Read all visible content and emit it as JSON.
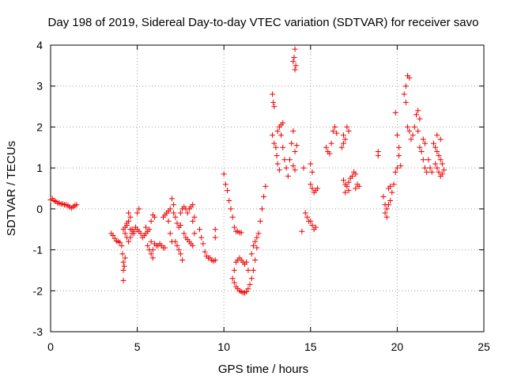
{
  "chart_data": {
    "type": "scatter",
    "title": "Day 198 of 2019, Sidereal Day-to-day VTEC variation (SDTVAR) for receiver savo",
    "xlabel": "GPS time / hours",
    "ylabel": "SDTVAR / TECUs",
    "xlim": [
      0,
      25
    ],
    "ylim": [
      -3,
      4
    ],
    "xticks": [
      "0",
      "5",
      "10",
      "15",
      "20",
      "25"
    ],
    "yticks": [
      "-3",
      "-2",
      "-1",
      "0",
      "1",
      "2",
      "3",
      "4"
    ],
    "grid": true,
    "marker": "+",
    "color": "#ee0000",
    "series": [
      {
        "name": "SDTVAR",
        "points": [
          [
            0.0,
            0.22
          ],
          [
            0.1,
            0.25
          ],
          [
            0.2,
            0.2
          ],
          [
            0.3,
            0.18
          ],
          [
            0.4,
            0.15
          ],
          [
            0.5,
            0.14
          ],
          [
            0.6,
            0.12
          ],
          [
            0.7,
            0.12
          ],
          [
            0.8,
            0.1
          ],
          [
            0.9,
            0.1
          ],
          [
            1.0,
            0.08
          ],
          [
            1.1,
            0.05
          ],
          [
            1.2,
            0.02
          ],
          [
            1.3,
            0.05
          ],
          [
            1.4,
            0.08
          ],
          [
            1.5,
            0.1
          ],
          [
            3.5,
            -0.6
          ],
          [
            3.6,
            -0.65
          ],
          [
            3.7,
            -0.72
          ],
          [
            3.8,
            -0.78
          ],
          [
            3.9,
            -0.8
          ],
          [
            4.0,
            -0.82
          ],
          [
            4.1,
            -0.9
          ],
          [
            4.15,
            -1.1
          ],
          [
            4.2,
            -1.3
          ],
          [
            4.2,
            -1.5
          ],
          [
            4.2,
            -1.75
          ],
          [
            4.25,
            -1.4
          ],
          [
            4.3,
            -1.2
          ],
          [
            4.2,
            -0.5
          ],
          [
            4.3,
            -0.45
          ],
          [
            4.4,
            -0.35
          ],
          [
            4.5,
            -0.3
          ],
          [
            4.6,
            -0.2
          ],
          [
            4.5,
            -0.1
          ],
          [
            4.4,
            -0.4
          ],
          [
            4.6,
            -0.5
          ],
          [
            4.7,
            -0.6
          ],
          [
            4.8,
            -0.55
          ],
          [
            4.9,
            -0.45
          ],
          [
            5.0,
            -0.5
          ],
          [
            5.1,
            -0.55
          ],
          [
            5.2,
            -0.6
          ],
          [
            5.0,
            -0.1
          ],
          [
            5.1,
            0.0
          ],
          [
            4.3,
            -0.6
          ],
          [
            4.4,
            -0.7
          ],
          [
            4.5,
            -0.8
          ],
          [
            4.6,
            -0.7
          ],
          [
            4.7,
            -0.5
          ],
          [
            4.8,
            -0.6
          ],
          [
            5.3,
            -0.7
          ],
          [
            5.4,
            -0.65
          ],
          [
            5.5,
            -0.6
          ],
          [
            5.6,
            -0.55
          ],
          [
            5.5,
            -0.45
          ],
          [
            5.7,
            -0.5
          ],
          [
            5.8,
            -0.3
          ],
          [
            5.9,
            -0.15
          ],
          [
            6.0,
            -0.2
          ],
          [
            5.6,
            -0.9
          ],
          [
            5.7,
            -1.0
          ],
          [
            5.8,
            -1.1
          ],
          [
            5.9,
            -1.2
          ],
          [
            5.8,
            -0.8
          ],
          [
            5.9,
            -1.0
          ],
          [
            6.0,
            -0.85
          ],
          [
            6.1,
            -0.9
          ],
          [
            6.2,
            -0.9
          ],
          [
            6.3,
            -0.85
          ],
          [
            6.4,
            -0.9
          ],
          [
            6.5,
            -0.95
          ],
          [
            6.6,
            -0.95
          ],
          [
            6.5,
            -0.2
          ],
          [
            6.6,
            -0.15
          ],
          [
            6.7,
            -0.1
          ],
          [
            6.8,
            -0.05
          ],
          [
            6.9,
            0.0
          ],
          [
            6.8,
            -0.3
          ],
          [
            6.9,
            -0.6
          ],
          [
            7.0,
            -0.8
          ],
          [
            7.0,
            0.25
          ],
          [
            7.1,
            0.1
          ],
          [
            7.1,
            -0.1
          ],
          [
            7.2,
            -0.2
          ],
          [
            7.3,
            -0.35
          ],
          [
            7.4,
            -0.45
          ],
          [
            7.5,
            -0.4
          ],
          [
            7.5,
            -0.1
          ],
          [
            7.6,
            0.0
          ],
          [
            7.7,
            0.05
          ],
          [
            7.8,
            0.0
          ],
          [
            7.9,
            -0.1
          ],
          [
            8.0,
            0.0
          ],
          [
            8.1,
            0.05
          ],
          [
            8.2,
            0.1
          ],
          [
            8.2,
            -0.3
          ],
          [
            8.3,
            -0.2
          ],
          [
            7.2,
            -0.8
          ],
          [
            7.3,
            -0.9
          ],
          [
            7.4,
            -1.0
          ],
          [
            7.5,
            -1.1
          ],
          [
            7.6,
            -1.25
          ],
          [
            7.7,
            -0.6
          ],
          [
            7.8,
            -0.7
          ],
          [
            7.9,
            -0.75
          ],
          [
            8.0,
            -0.8
          ],
          [
            8.1,
            -0.85
          ],
          [
            8.2,
            -0.9
          ],
          [
            8.3,
            -0.6
          ],
          [
            8.6,
            -0.5
          ],
          [
            8.7,
            -0.7
          ],
          [
            8.8,
            -0.85
          ],
          [
            8.9,
            -1.05
          ],
          [
            9.0,
            -1.15
          ],
          [
            9.1,
            -1.2
          ],
          [
            9.2,
            -1.2
          ],
          [
            9.3,
            -1.25
          ],
          [
            9.4,
            -1.28
          ],
          [
            9.5,
            -1.25
          ],
          [
            9.5,
            -0.5
          ],
          [
            9.5,
            -0.7
          ],
          [
            10.0,
            0.85
          ],
          [
            10.1,
            0.6
          ],
          [
            10.2,
            0.45
          ],
          [
            10.3,
            0.2
          ],
          [
            10.4,
            0.0
          ],
          [
            10.5,
            -0.2
          ],
          [
            10.6,
            -0.45
          ],
          [
            10.7,
            -0.55
          ],
          [
            10.8,
            -0.55
          ],
          [
            10.9,
            -0.58
          ],
          [
            11.0,
            -0.58
          ],
          [
            10.5,
            -1.7
          ],
          [
            10.6,
            -1.8
          ],
          [
            10.7,
            -1.9
          ],
          [
            10.8,
            -1.95
          ],
          [
            10.9,
            -2.0
          ],
          [
            11.0,
            -2.02
          ],
          [
            11.1,
            -2.05
          ],
          [
            11.2,
            -2.05
          ],
          [
            11.3,
            -2.02
          ],
          [
            11.4,
            -1.95
          ],
          [
            11.5,
            -1.85
          ],
          [
            11.6,
            -1.7
          ],
          [
            11.7,
            -1.5
          ],
          [
            11.8,
            -1.25
          ],
          [
            11.9,
            -0.95
          ],
          [
            12.0,
            -0.6
          ],
          [
            12.1,
            -0.3
          ],
          [
            12.2,
            0.0
          ],
          [
            12.3,
            0.3
          ],
          [
            12.4,
            0.55
          ],
          [
            10.6,
            -1.5
          ],
          [
            10.7,
            -1.3
          ],
          [
            10.8,
            -1.25
          ],
          [
            10.9,
            -1.2
          ],
          [
            11.0,
            -1.25
          ],
          [
            11.1,
            -1.3
          ],
          [
            11.2,
            -1.35
          ],
          [
            11.3,
            -1.3
          ],
          [
            11.4,
            -1.5
          ],
          [
            11.6,
            -1.1
          ],
          [
            11.7,
            -0.9
          ],
          [
            11.8,
            -0.8
          ],
          [
            11.9,
            -0.7
          ],
          [
            12.8,
            2.8
          ],
          [
            12.85,
            2.6
          ],
          [
            12.9,
            2.5
          ],
          [
            12.8,
            1.8
          ],
          [
            12.9,
            1.6
          ],
          [
            13.0,
            1.5
          ],
          [
            13.05,
            1.3
          ],
          [
            13.1,
            1.1
          ],
          [
            13.2,
            0.95
          ],
          [
            13.1,
            1.9
          ],
          [
            13.2,
            2.0
          ],
          [
            13.3,
            2.05
          ],
          [
            13.4,
            2.1
          ],
          [
            13.3,
            1.8
          ],
          [
            13.4,
            1.5
          ],
          [
            13.5,
            1.2
          ],
          [
            13.6,
            1.0
          ],
          [
            13.7,
            0.8
          ],
          [
            13.8,
            1.2
          ],
          [
            13.9,
            1.6
          ],
          [
            14.0,
            1.9
          ],
          [
            14.0,
            1.05
          ],
          [
            14.1,
            0.95
          ],
          [
            14.1,
            1.4
          ],
          [
            14.2,
            1.55
          ],
          [
            14.0,
            3.6
          ],
          [
            14.05,
            3.7
          ],
          [
            14.1,
            3.9
          ],
          [
            14.15,
            3.5
          ],
          [
            14.1,
            3.4
          ],
          [
            14.5,
            -0.55
          ],
          [
            14.6,
            1.0
          ],
          [
            14.7,
            -0.1
          ],
          [
            14.8,
            -0.2
          ],
          [
            14.9,
            -0.3
          ],
          [
            15.0,
            0.6
          ],
          [
            15.1,
            0.9
          ],
          [
            15.0,
            1.1
          ],
          [
            15.1,
            0.5
          ],
          [
            15.2,
            0.4
          ],
          [
            15.3,
            0.45
          ],
          [
            15.4,
            0.5
          ],
          [
            15.1,
            -0.4
          ],
          [
            15.2,
            -0.5
          ],
          [
            15.3,
            -0.45
          ],
          [
            15.0,
            -0.3
          ],
          [
            15.9,
            1.5
          ],
          [
            16.0,
            1.4
          ],
          [
            16.1,
            1.35
          ],
          [
            16.2,
            1.6
          ],
          [
            16.3,
            1.9
          ],
          [
            16.4,
            2.0
          ],
          [
            16.5,
            1.85
          ],
          [
            16.9,
            1.8
          ],
          [
            17.0,
            1.7
          ],
          [
            17.1,
            2.0
          ],
          [
            17.2,
            1.9
          ],
          [
            16.8,
            1.5
          ],
          [
            16.9,
            1.6
          ],
          [
            16.9,
            0.7
          ],
          [
            17.0,
            0.6
          ],
          [
            17.1,
            0.55
          ],
          [
            17.2,
            0.65
          ],
          [
            17.3,
            0.75
          ],
          [
            17.4,
            0.8
          ],
          [
            17.5,
            0.9
          ],
          [
            17.6,
            0.85
          ],
          [
            17.0,
            0.4
          ],
          [
            17.2,
            0.45
          ],
          [
            17.6,
            0.5
          ],
          [
            17.7,
            0.6
          ],
          [
            17.8,
            0.55
          ],
          [
            18.9,
            1.4
          ],
          [
            18.9,
            1.3
          ],
          [
            19.2,
            0.3
          ],
          [
            19.3,
            0.1
          ],
          [
            19.4,
            0.0
          ],
          [
            19.5,
            0.1
          ],
          [
            19.6,
            0.2
          ],
          [
            19.7,
            0.4
          ],
          [
            19.8,
            0.6
          ],
          [
            19.9,
            0.9
          ],
          [
            20.0,
            1.0
          ],
          [
            19.5,
            0.5
          ],
          [
            19.6,
            0.55
          ],
          [
            19.4,
            -0.2
          ],
          [
            19.3,
            -0.1
          ],
          [
            19.9,
            2.35
          ],
          [
            20.0,
            1.8
          ],
          [
            20.1,
            1.5
          ],
          [
            20.1,
            1.3
          ],
          [
            20.2,
            1.05
          ],
          [
            20.4,
            2.8
          ],
          [
            20.5,
            3.0
          ],
          [
            20.6,
            3.25
          ],
          [
            20.7,
            3.2
          ],
          [
            20.5,
            2.6
          ],
          [
            20.6,
            2.0
          ],
          [
            20.7,
            1.9
          ],
          [
            20.8,
            1.7
          ],
          [
            20.9,
            1.8
          ],
          [
            21.0,
            2.0
          ],
          [
            21.1,
            2.3
          ],
          [
            21.2,
            2.4
          ],
          [
            21.3,
            2.2
          ],
          [
            21.2,
            1.9
          ],
          [
            21.3,
            1.5
          ],
          [
            21.4,
            1.4
          ],
          [
            21.5,
            1.2
          ],
          [
            21.6,
            1.0
          ],
          [
            21.7,
            0.9
          ],
          [
            21.5,
            1.7
          ],
          [
            21.6,
            1.6
          ],
          [
            21.8,
            1.2
          ],
          [
            21.9,
            1.0
          ],
          [
            22.0,
            0.9
          ],
          [
            22.1,
            1.6
          ],
          [
            22.2,
            1.5
          ],
          [
            22.3,
            1.4
          ],
          [
            22.4,
            1.3
          ],
          [
            22.5,
            1.2
          ],
          [
            22.6,
            1.1
          ],
          [
            22.2,
            1.1
          ],
          [
            22.3,
            1.0
          ],
          [
            22.4,
            0.9
          ],
          [
            22.5,
            0.8
          ],
          [
            22.6,
            0.85
          ],
          [
            22.7,
            0.95
          ],
          [
            22.3,
            1.8
          ],
          [
            22.5,
            1.7
          ]
        ]
      }
    ]
  }
}
